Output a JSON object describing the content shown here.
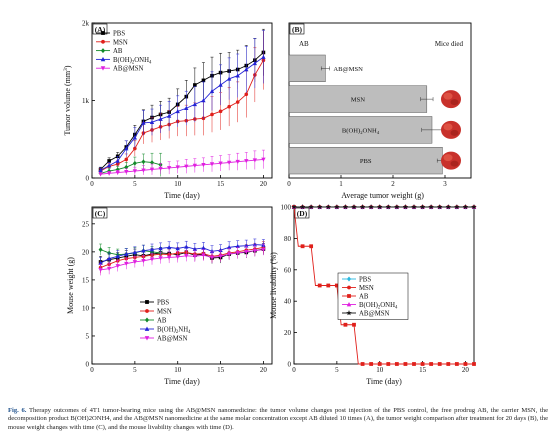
{
  "caption": {
    "label": "Fig. 6.",
    "text": "Therapy outcomes of 4T1 tumor-bearing mice using the AB@MSN nanomedicine: the tumor volume changes post injection of the PBS control, the free prodrug AB, the carrier MSN, the decomposition product B(OH)2ONH4, and the AB@MSN nanomedicine at the same molar concentration except AB diluted 10 times (A), the tumor weight comparison after treatment for 20 days (B), the mouse weight changes with time (C), and the mouse livability changes with time (D)."
  },
  "colors": {
    "PBS": "#000000",
    "MSN": "#e0201b",
    "AB": "#128a2a",
    "BOH": "#2323d6",
    "ABMSN": "#e020e0",
    "PBS_D": "#28b8e0",
    "bar": "#bdbdbd"
  },
  "chart_data": [
    {
      "panel": "(A)",
      "type": "line",
      "xlabel": "Time (day)",
      "ylabel": "Tumor volume (mm3)",
      "xlim": [
        0,
        21
      ],
      "ylim": [
        0,
        2000
      ],
      "xticks": [
        0,
        5,
        10,
        15,
        20
      ],
      "yticks": [
        {
          "v": 0,
          "t": "0"
        },
        {
          "v": 1000,
          "t": "1k"
        },
        {
          "v": 2000,
          "t": "2k"
        }
      ],
      "legend": "top-left",
      "series": [
        {
          "name": "PBS",
          "marker": "square",
          "x": [
            1,
            2,
            3,
            4,
            5,
            6,
            7,
            8,
            9,
            10,
            11,
            12,
            13,
            14,
            15,
            16,
            17,
            18,
            19,
            20
          ],
          "y": [
            110,
            220,
            280,
            400,
            560,
            730,
            780,
            820,
            850,
            950,
            1050,
            1200,
            1260,
            1320,
            1360,
            1380,
            1400,
            1450,
            1520,
            1620
          ],
          "err": [
            30,
            40,
            50,
            80,
            120,
            150,
            160,
            170,
            180,
            200,
            210,
            220,
            230,
            240,
            250,
            240,
            250,
            260,
            280,
            300
          ]
        },
        {
          "name": "MSN",
          "marker": "circle",
          "x": [
            1,
            2,
            3,
            4,
            5,
            6,
            7,
            8,
            9,
            10,
            11,
            12,
            13,
            14,
            15,
            16,
            17,
            18,
            19,
            20
          ],
          "y": [
            90,
            150,
            180,
            240,
            380,
            580,
            620,
            660,
            690,
            730,
            740,
            760,
            770,
            820,
            860,
            920,
            980,
            1080,
            1330,
            1520
          ],
          "err": [
            30,
            40,
            50,
            70,
            100,
            140,
            160,
            170,
            180,
            190,
            200,
            210,
            220,
            230,
            240,
            250,
            260,
            300,
            350,
            380
          ]
        },
        {
          "name": "AB",
          "marker": "diamond",
          "x": [
            1,
            2,
            3,
            4,
            5,
            6,
            7,
            8
          ],
          "y": [
            60,
            90,
            110,
            140,
            190,
            210,
            200,
            170
          ],
          "err": [
            20,
            30,
            40,
            60,
            80,
            100,
            120,
            150
          ]
        },
        {
          "name": "B(OH)2ONH4",
          "marker": "triangle",
          "x": [
            1,
            2,
            3,
            4,
            5,
            6,
            7,
            8,
            9,
            10,
            11,
            12,
            13,
            14,
            15,
            16,
            17,
            18,
            19,
            20
          ],
          "y": [
            100,
            160,
            220,
            380,
            520,
            710,
            720,
            760,
            800,
            860,
            900,
            950,
            1000,
            1120,
            1200,
            1280,
            1320,
            1400,
            1480,
            1560
          ],
          "err": [
            30,
            40,
            60,
            100,
            130,
            160,
            170,
            180,
            190,
            200,
            220,
            230,
            240,
            250,
            260,
            270,
            280,
            300,
            320,
            340
          ]
        },
        {
          "name": "AB@MSN",
          "marker": "tri-down",
          "x": [
            1,
            2,
            3,
            4,
            5,
            6,
            7,
            8,
            9,
            10,
            11,
            12,
            13,
            14,
            15,
            16,
            17,
            18,
            19,
            20
          ],
          "y": [
            50,
            60,
            70,
            80,
            90,
            100,
            110,
            120,
            130,
            140,
            150,
            160,
            170,
            180,
            190,
            200,
            210,
            220,
            230,
            240
          ],
          "err": [
            20,
            25,
            30,
            40,
            50,
            60,
            70,
            70,
            80,
            80,
            90,
            90,
            90,
            100,
            100,
            100,
            110,
            110,
            120,
            120
          ]
        }
      ]
    },
    {
      "panel": "(B)",
      "type": "bar",
      "orientation": "horizontal",
      "header_left": "AB",
      "header_right": "Mice died",
      "xlabel": "Average tumor weight (g)",
      "xlim": [
        0,
        3.5
      ],
      "xticks": [
        0,
        1,
        2,
        3
      ],
      "bars": [
        {
          "label": "AB@MSN",
          "value": 0.7,
          "err": 0.08
        },
        {
          "label": "MSN",
          "value": 2.65,
          "err": 0.12
        },
        {
          "label": "B(OH)2ONH4",
          "value": 2.75,
          "err": 0.2
        },
        {
          "label": "PBS",
          "value": 2.95,
          "err": 0.1
        }
      ]
    },
    {
      "panel": "(C)",
      "type": "line",
      "xlabel": "Time (day)",
      "ylabel": "Mouse weight (g)",
      "xlim": [
        0,
        21
      ],
      "ylim": [
        0,
        28
      ],
      "xticks": [
        0,
        5,
        10,
        15,
        20
      ],
      "yticks": [
        {
          "v": 0,
          "t": "0"
        },
        {
          "v": 5,
          "t": "5"
        },
        {
          "v": 10,
          "t": "10"
        },
        {
          "v": 15,
          "t": "15"
        },
        {
          "v": 20,
          "t": "20"
        },
        {
          "v": 25,
          "t": "25"
        }
      ],
      "legend": "bottom-center",
      "series": [
        {
          "name": "PBS",
          "marker": "square",
          "x": [
            1,
            2,
            3,
            4,
            5,
            6,
            7,
            8,
            9,
            10,
            11,
            12,
            13,
            14,
            15,
            16,
            17,
            18,
            19,
            20
          ],
          "y": [
            18.2,
            18.6,
            18.9,
            19.2,
            19.5,
            19.3,
            19.6,
            19.8,
            19.7,
            19.5,
            19.9,
            19.4,
            19.6,
            18.9,
            19.0,
            19.6,
            19.8,
            19.9,
            20.2,
            20.5
          ],
          "err": [
            1,
            1,
            1,
            1,
            1,
            1,
            1,
            1,
            1,
            1,
            1,
            1,
            1,
            1,
            1,
            1,
            1,
            1,
            1,
            1
          ]
        },
        {
          "name": "MSN",
          "marker": "circle",
          "x": [
            1,
            2,
            3,
            4,
            5,
            6,
            7,
            8,
            9,
            10,
            11,
            12,
            13,
            14,
            15,
            16,
            17,
            18,
            19,
            20
          ],
          "y": [
            17.2,
            17.8,
            18.4,
            18.8,
            19.0,
            19.2,
            19.4,
            19.6,
            19.5,
            19.8,
            19.9,
            19.6,
            19.7,
            19.2,
            19.4,
            19.8,
            20.0,
            20.3,
            20.5,
            20.8
          ],
          "err": [
            1,
            1,
            1,
            1,
            1,
            1,
            1,
            1,
            1,
            1,
            1,
            1,
            1,
            1,
            1,
            1,
            1,
            1,
            1,
            1
          ]
        },
        {
          "name": "AB",
          "marker": "diamond",
          "x": [
            1,
            2,
            3,
            4,
            5,
            6,
            7,
            8
          ],
          "y": [
            20.4,
            19.8,
            19.5,
            19.6,
            19.8,
            20.2,
            20.0,
            19.8
          ],
          "err": [
            1,
            1,
            1,
            1,
            1,
            1,
            1,
            1
          ]
        },
        {
          "name": "B(OH)2NH4",
          "marker": "triangle",
          "x": [
            1,
            2,
            3,
            4,
            5,
            6,
            7,
            8,
            9,
            10,
            11,
            12,
            13,
            14,
            15,
            16,
            17,
            18,
            19,
            20
          ],
          "y": [
            18.0,
            18.8,
            19.2,
            19.6,
            19.9,
            20.2,
            20.4,
            20.6,
            20.8,
            20.6,
            20.9,
            20.5,
            20.7,
            20.1,
            20.3,
            20.8,
            21.0,
            21.1,
            21.3,
            21.2
          ],
          "err": [
            1,
            1,
            1,
            1,
            1,
            1,
            1,
            1,
            1,
            1,
            1,
            1,
            1,
            1,
            1,
            1,
            1,
            1,
            1,
            1
          ]
        },
        {
          "name": "AB@MSN",
          "marker": "tri-down",
          "x": [
            1,
            2,
            3,
            4,
            5,
            6,
            7,
            8,
            9,
            10,
            11,
            12,
            13,
            14,
            15,
            16,
            17,
            18,
            19,
            20
          ],
          "y": [
            16.8,
            17.0,
            17.5,
            17.9,
            18.2,
            18.4,
            18.7,
            18.9,
            19.0,
            19.1,
            19.3,
            19.2,
            19.4,
            19.0,
            19.2,
            19.6,
            19.8,
            20.0,
            20.2,
            20.4
          ],
          "err": [
            1,
            1,
            1,
            1,
            1,
            1,
            1,
            1,
            1,
            1,
            1,
            1,
            1,
            1,
            1,
            1,
            1,
            1,
            1,
            1
          ]
        }
      ]
    },
    {
      "panel": "(D)",
      "type": "line",
      "xlabel": "Time (day)",
      "ylabel": "Mouse livability (%)",
      "xlim": [
        0,
        21
      ],
      "ylim": [
        0,
        100
      ],
      "xticks": [
        0,
        5,
        10,
        15,
        20
      ],
      "yticks": [
        {
          "v": 0,
          "t": "0"
        },
        {
          "v": 20,
          "t": "20"
        },
        {
          "v": 40,
          "t": "40"
        },
        {
          "v": 60,
          "t": "60"
        },
        {
          "v": 80,
          "t": "80"
        },
        {
          "v": 100,
          "t": "100"
        }
      ],
      "legend": "center",
      "series": [
        {
          "name": "PBS",
          "marker": "diamond",
          "x": [
            0,
            1,
            2,
            3,
            4,
            5,
            6,
            7,
            8,
            9,
            10,
            11,
            12,
            13,
            14,
            15,
            16,
            17,
            18,
            19,
            20,
            21
          ],
          "y": [
            100,
            100,
            100,
            100,
            100,
            100,
            100,
            100,
            100,
            100,
            100,
            100,
            100,
            100,
            100,
            100,
            100,
            100,
            100,
            100,
            100,
            100
          ]
        },
        {
          "name": "MSN",
          "marker": "circle",
          "x": [
            0,
            1,
            2,
            3,
            4,
            5,
            6,
            7,
            8,
            9,
            10,
            11,
            12,
            13,
            14,
            15,
            16,
            17,
            18,
            19,
            20,
            21
          ],
          "y": [
            100,
            100,
            100,
            100,
            100,
            100,
            100,
            100,
            100,
            100,
            100,
            100,
            100,
            100,
            100,
            100,
            100,
            100,
            100,
            100,
            100,
            100
          ]
        },
        {
          "name": "AB",
          "marker": "square",
          "step": true,
          "x": [
            0,
            0.5,
            1,
            1.5,
            2,
            2.5,
            3,
            3.5,
            4,
            4.5,
            5,
            5.5,
            6,
            6.5,
            7,
            7.5,
            8,
            9,
            10,
            11,
            12,
            13,
            14,
            15,
            16,
            17,
            18,
            19,
            20,
            21
          ],
          "y": [
            100,
            75,
            75,
            75,
            75,
            50,
            50,
            50,
            50,
            50,
            50,
            25,
            25,
            25,
            25,
            0,
            0,
            0,
            0,
            0,
            0,
            0,
            0,
            0,
            0,
            0,
            0,
            0,
            0,
            0
          ]
        },
        {
          "name": "B(OH)2ONH4",
          "marker": "triangle",
          "x": [
            0,
            1,
            2,
            3,
            4,
            5,
            6,
            7,
            8,
            9,
            10,
            11,
            12,
            13,
            14,
            15,
            16,
            17,
            18,
            19,
            20,
            21
          ],
          "y": [
            100,
            100,
            100,
            100,
            100,
            100,
            100,
            100,
            100,
            100,
            100,
            100,
            100,
            100,
            100,
            100,
            100,
            100,
            100,
            100,
            100,
            100
          ]
        },
        {
          "name": "AB@MSN",
          "marker": "star",
          "x": [
            0,
            1,
            2,
            3,
            4,
            5,
            6,
            7,
            8,
            9,
            10,
            11,
            12,
            13,
            14,
            15,
            16,
            17,
            18,
            19,
            20,
            21
          ],
          "y": [
            100,
            100,
            100,
            100,
            100,
            100,
            100,
            100,
            100,
            100,
            100,
            100,
            100,
            100,
            100,
            100,
            100,
            100,
            100,
            100,
            100,
            100
          ]
        }
      ]
    }
  ]
}
